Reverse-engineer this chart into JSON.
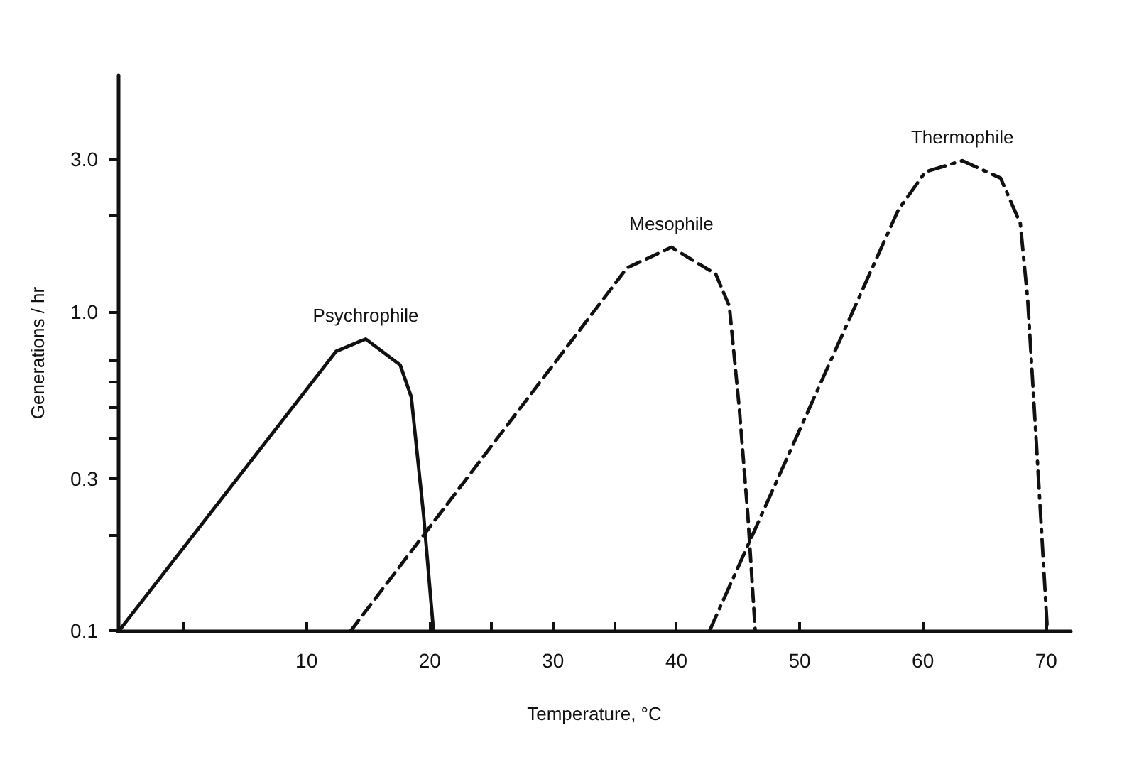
{
  "chart_data": {
    "type": "line",
    "xlabel": "Temperature, °C",
    "ylabel": "Generations / hr",
    "log": "y",
    "grid": false,
    "legend": false,
    "marker": "none",
    "xlim": [
      -5.3,
      72
    ],
    "xticks": [
      {
        "value": 0,
        "label": null
      },
      10,
      20,
      {
        "value": 25,
        "label": null
      },
      30,
      {
        "value": 35,
        "label": null
      },
      40,
      50,
      60,
      70
    ],
    "ylim": [
      0.1,
      5.5
    ],
    "yticks": [
      0.1,
      {
        "value": 0.2,
        "label": null
      },
      0.3,
      {
        "value": 0.4,
        "label": null
      },
      {
        "value": 0.5,
        "label": null
      },
      {
        "value": 0.6,
        "label": null
      },
      {
        "value": 0.7,
        "label": null
      },
      {
        "value": 1,
        "label": "1.0"
      },
      {
        "value": 2,
        "label": null
      },
      {
        "value": 3,
        "label": "3.0"
      }
    ],
    "series": [
      {
        "name": "Psychrophile",
        "color": "#111111",
        "line_style": "solid",
        "x": [
          -5.2,
          12.4,
          14.8,
          17.6,
          18.5,
          19.5,
          20.3
        ],
        "values": [
          0.1,
          0.75,
          0.82,
          0.68,
          0.54,
          0.23,
          0.1
        ]
      },
      {
        "name": "Mesophile",
        "color": "#111111",
        "line_style": "dashed",
        "x": [
          13.6,
          36.0,
          39.6,
          43.2,
          44.3,
          45.1,
          45.8,
          46.4
        ],
        "values": [
          0.1,
          1.37,
          1.59,
          1.31,
          1.04,
          0.5,
          0.23,
          0.1
        ]
      },
      {
        "name": "Thermophile",
        "color": "#111111",
        "line_style": "dashdot",
        "x": [
          42.7,
          58.0,
          60.2,
          63.2,
          66.3,
          67.9,
          68.5,
          69.2,
          70.1
        ],
        "values": [
          0.1,
          2.08,
          2.74,
          2.97,
          2.62,
          1.89,
          1.09,
          0.39,
          0.1
        ]
      }
    ]
  }
}
